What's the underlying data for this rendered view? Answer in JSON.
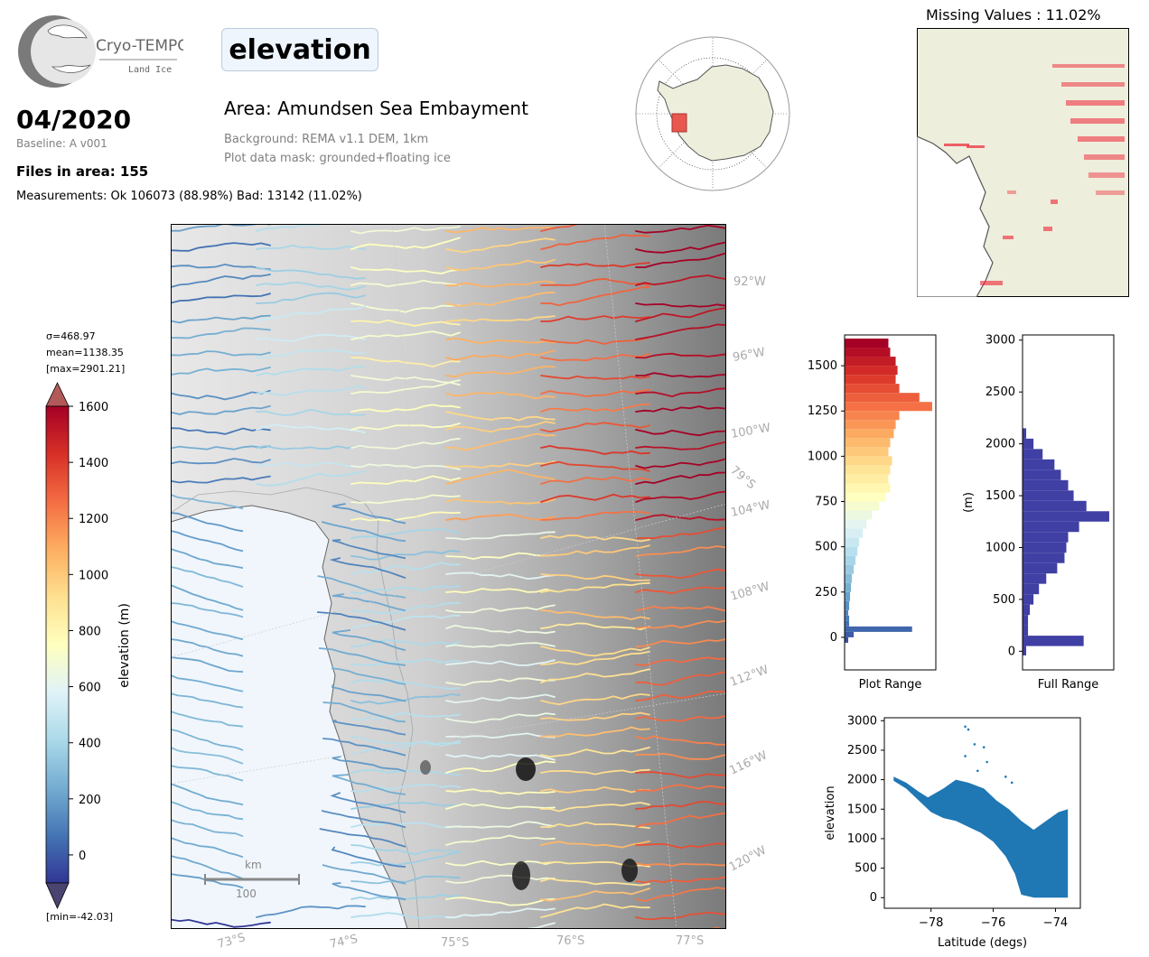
{
  "logo": {
    "name": "Cryo-TEMPO",
    "subtitle": "Land Ice"
  },
  "header": {
    "title": "elevation",
    "date": "04/2020",
    "baseline": "Baseline: A v001",
    "files": "Files in area: 155",
    "measurements": "Measurements: Ok 106073 (88.98%) Bad: 13142 (11.02%)",
    "area": "Area: Amundsen Sea Embayment",
    "background": "Background: REMA v1.1 DEM, 1km",
    "mask": "Plot data mask: grounded+floating ice"
  },
  "missing": {
    "title": "Missing Values : 11.02%"
  },
  "colorbar": {
    "sigma": "σ=468.97",
    "mean": "mean=1138.35",
    "max": "[max=2901.21]",
    "min": "[min=-42.03]",
    "label": "elevation (m)",
    "ticks": [
      "1600",
      "1400",
      "1200",
      "1000",
      "800",
      "600",
      "400",
      "200",
      "0"
    ],
    "colors": [
      "#a50026",
      "#d73027",
      "#f46d43",
      "#fdae61",
      "#fee090",
      "#ffffbf",
      "#e0f3f8",
      "#abd9e9",
      "#74add1",
      "#4575b4",
      "#313695"
    ]
  },
  "map": {
    "lon_labels": [
      "92°W",
      "96°W",
      "100°W",
      "104°W",
      "108°W",
      "112°W",
      "116°W",
      "120°W"
    ],
    "lat_labels": [
      "73°S",
      "74°S",
      "75°S",
      "76°S",
      "77°S"
    ],
    "lat_inner": "79°S",
    "scale_unit": "km",
    "scale_value": "100"
  },
  "chart_data": [
    {
      "type": "bar",
      "orientation": "horizontal",
      "xlabel": "Plot Range",
      "ylabel": "",
      "ylim": [
        -180,
        1670
      ],
      "yticks": [
        "0",
        "250",
        "500",
        "750",
        "1000",
        "1250",
        "1500"
      ],
      "bins": [
        -30,
        0,
        30,
        60,
        90,
        120,
        150,
        200,
        250,
        300,
        350,
        400,
        450,
        500,
        550,
        600,
        650,
        700,
        750,
        800,
        850,
        900,
        950,
        1000,
        1050,
        1100,
        1150,
        1200,
        1250,
        1300,
        1350,
        1400,
        1450,
        1500,
        1550,
        1600
      ],
      "values": [
        0.04,
        0.1,
        0.74,
        0.05,
        0.05,
        0.04,
        0.05,
        0.06,
        0.07,
        0.08,
        0.1,
        0.12,
        0.14,
        0.16,
        0.2,
        0.24,
        0.3,
        0.38,
        0.45,
        0.5,
        0.48,
        0.5,
        0.52,
        0.48,
        0.5,
        0.54,
        0.56,
        0.6,
        0.96,
        0.82,
        0.6,
        0.56,
        0.58,
        0.56,
        0.5,
        0.48
      ]
    },
    {
      "type": "bar",
      "orientation": "horizontal",
      "xlabel": "Full Range",
      "ylabel": "(m)",
      "ylim": [
        -180,
        3050
      ],
      "yticks": [
        "0",
        "500",
        "1000",
        "1500",
        "2000",
        "2500",
        "3000"
      ],
      "bins": [
        -40,
        50,
        150,
        250,
        350,
        450,
        550,
        650,
        750,
        850,
        950,
        1050,
        1150,
        1250,
        1350,
        1450,
        1550,
        1650,
        1750,
        1850,
        1950,
        2050
      ],
      "values": [
        0.04,
        0.67,
        0.06,
        0.06,
        0.08,
        0.12,
        0.18,
        0.26,
        0.38,
        0.46,
        0.48,
        0.5,
        0.62,
        0.95,
        0.7,
        0.56,
        0.5,
        0.42,
        0.35,
        0.22,
        0.12,
        0.04
      ]
    },
    {
      "type": "scatter",
      "xlabel": "Latitude (degs)",
      "ylabel": "elevation",
      "xlim": [
        -79.5,
        -73.2
      ],
      "ylim": [
        -180,
        3050
      ],
      "xticks": [
        "−78",
        "−76",
        "−74"
      ],
      "yticks": [
        "0",
        "500",
        "1000",
        "1500",
        "2000",
        "2500",
        "3000"
      ],
      "series": [
        {
          "color": "#1f77b4",
          "upper": [
            [
              -79.2,
              2050
            ],
            [
              -78.8,
              1950
            ],
            [
              -78.4,
              1800
            ],
            [
              -78.1,
              1700
            ],
            [
              -77.6,
              1850
            ],
            [
              -77.2,
              2000
            ],
            [
              -76.8,
              1950
            ],
            [
              -76.3,
              1850
            ],
            [
              -75.9,
              1650
            ],
            [
              -75.5,
              1500
            ],
            [
              -75.1,
              1300
            ],
            [
              -74.7,
              1150
            ],
            [
              -74.3,
              1300
            ],
            [
              -73.9,
              1450
            ],
            [
              -73.6,
              1500
            ]
          ],
          "lower": [
            [
              -79.2,
              1980
            ],
            [
              -78.8,
              1850
            ],
            [
              -78.4,
              1650
            ],
            [
              -78.0,
              1450
            ],
            [
              -77.6,
              1350
            ],
            [
              -77.2,
              1300
            ],
            [
              -76.8,
              1200
            ],
            [
              -76.4,
              1100
            ],
            [
              -76.0,
              950
            ],
            [
              -75.6,
              700
            ],
            [
              -75.3,
              400
            ],
            [
              -75.1,
              50
            ],
            [
              -74.7,
              0
            ],
            [
              -74.2,
              0
            ],
            [
              -73.6,
              0
            ]
          ],
          "outliers": [
            [
              -76.9,
              2900
            ],
            [
              -76.8,
              2850
            ],
            [
              -76.6,
              2600
            ],
            [
              -76.3,
              2550
            ],
            [
              -76.2,
              2300
            ],
            [
              -75.6,
              2050
            ],
            [
              -75.4,
              1950
            ],
            [
              -76.9,
              2400
            ],
            [
              -76.5,
              2150
            ]
          ]
        }
      ]
    }
  ]
}
